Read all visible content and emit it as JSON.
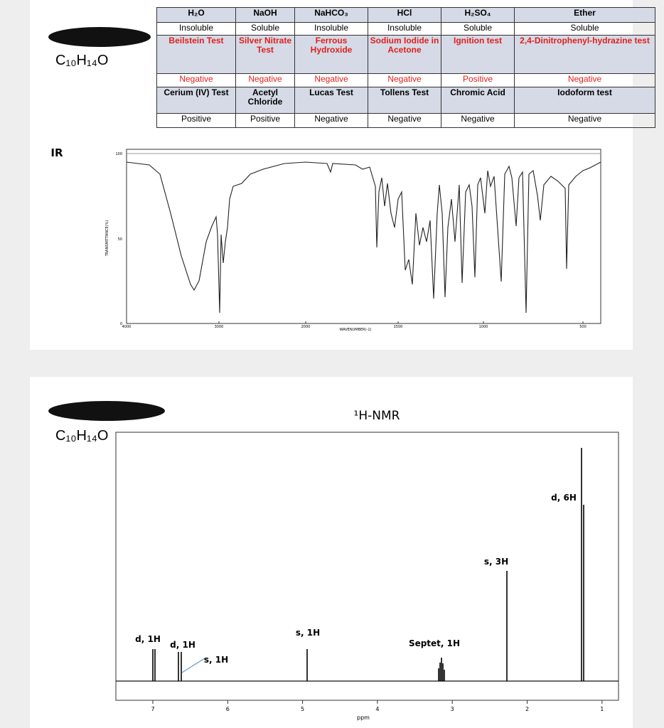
{
  "formula_top": "C₁₀H₁₄O",
  "table": {
    "rows": [
      [
        "H₂O",
        "NaOH",
        "NaHCO₃",
        "HCl",
        "H₂SO₄",
        "Ether"
      ],
      [
        "Insoluble",
        "Soluble",
        "Insoluble",
        "Insoluble",
        "Soluble",
        "Soluble"
      ],
      [
        "Beilstein Test",
        "Silver Nitrate Test",
        "Ferrous Hydroxide",
        "Sodium Iodide in Acetone",
        "Ignition test",
        "2,4-Dinitrophenyl-hydrazine test"
      ],
      [
        "Negative",
        "Negative",
        "Negative",
        "Negative",
        "Positive",
        "Negative"
      ],
      [
        "Cerium (IV) Test",
        "Acetyl Chloride",
        "Lucas Test",
        "Tollens Test",
        "Chromic Acid",
        "Iodoform test"
      ],
      [
        "Positive",
        "Positive",
        "Negative",
        "Negative",
        "Negative",
        "Negative"
      ]
    ]
  },
  "ir": {
    "label": "IR",
    "xticks": [
      "4000",
      "3000",
      "2000",
      "1500",
      "1000",
      "500"
    ],
    "yticks": [
      "100",
      "50",
      "0"
    ],
    "x_axis_label": "WAVENUMBER(-1)",
    "y_axis_label": "TRANSMITTANCE(%)"
  },
  "nmr": {
    "formula": "C₁₀H₁₄O",
    "title": "¹H-NMR",
    "xticks": [
      "7",
      "6",
      "5",
      "4",
      "3",
      "2",
      "1"
    ],
    "x_axis_label": "ppm",
    "annotations": [
      "d, 1H",
      "d, 1H",
      "s, 1H",
      "s, 1H",
      "Septet, 1H",
      "s, 3H",
      "d, 6H"
    ]
  }
}
